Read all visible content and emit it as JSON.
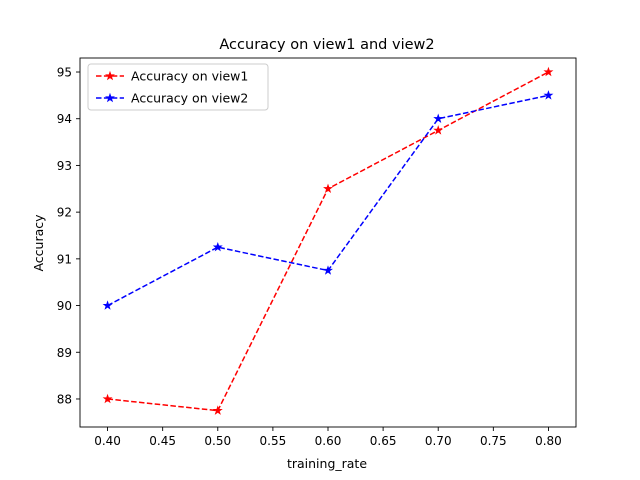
{
  "chart_data": {
    "type": "line",
    "title": "Accuracy on view1 and view2",
    "xlabel": "training_rate",
    "ylabel": "Accuracy",
    "x": [
      0.4,
      0.5,
      0.6,
      0.7,
      0.8
    ],
    "xlim": [
      0.375,
      0.825
    ],
    "ylim": [
      87.4,
      95.3
    ],
    "xticks": [
      0.4,
      0.45,
      0.5,
      0.55,
      0.6,
      0.65,
      0.7,
      0.75,
      0.8
    ],
    "xtick_labels": [
      "0.40",
      "0.45",
      "0.50",
      "0.55",
      "0.60",
      "0.65",
      "0.70",
      "0.75",
      "0.80"
    ],
    "yticks": [
      88,
      89,
      90,
      91,
      92,
      93,
      94,
      95
    ],
    "ytick_labels": [
      "88",
      "89",
      "90",
      "91",
      "92",
      "93",
      "94",
      "95"
    ],
    "grid": false,
    "legend_position": "top-left",
    "series": [
      {
        "name": "Accuracy on view1",
        "color": "#ff0000",
        "line_style": "dashed",
        "marker": "star",
        "values": [
          88.0,
          87.75,
          92.5,
          93.75,
          95.0
        ]
      },
      {
        "name": "Accuracy on view2",
        "color": "#0000ff",
        "line_style": "dashed",
        "marker": "star",
        "values": [
          90.0,
          91.25,
          90.75,
          94.0,
          94.5
        ]
      }
    ]
  }
}
